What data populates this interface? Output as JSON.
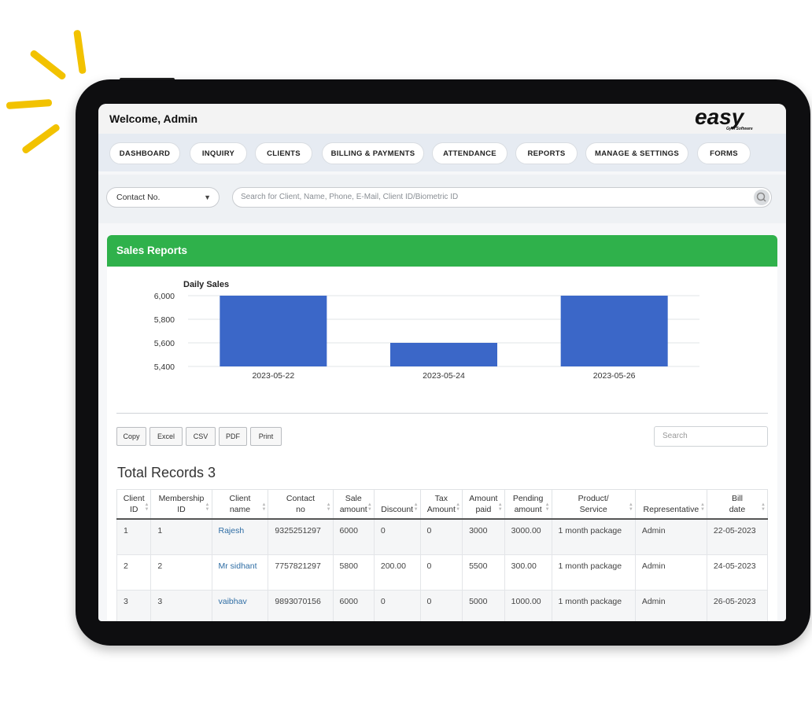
{
  "header": {
    "welcome": "Welcome, Admin",
    "logo_text": "easy",
    "logo_sub": "Gym Software"
  },
  "nav": [
    "DASHBOARD",
    "INQUIRY",
    "CLIENTS",
    "BILLING & PAYMENTS",
    "ATTENDANCE",
    "REPORTS",
    "MANAGE & SETTINGS",
    "FORMS"
  ],
  "search": {
    "select_value": "Contact No.",
    "placeholder": "Search for Client, Name, Phone, E-Mail, Client ID/Biometric ID"
  },
  "panel": {
    "title": "Sales Reports"
  },
  "chart_data": {
    "type": "bar",
    "title": "Daily Sales",
    "categories": [
      "2023-05-22",
      "2023-05-24",
      "2023-05-26"
    ],
    "values": [
      6000,
      5600,
      6000
    ],
    "ylim": [
      5400,
      6000
    ],
    "yticks": [
      "6,000",
      "5,800",
      "5,600",
      "5,400"
    ],
    "color": "#3b67c8",
    "grid": true
  },
  "export_buttons": [
    "Copy",
    "Excel",
    "CSV",
    "PDF",
    "Print"
  ],
  "table_search_placeholder": "Search",
  "total_records": "Total Records 3",
  "table": {
    "headers": [
      [
        "Client",
        "ID"
      ],
      [
        "Membership",
        "ID"
      ],
      [
        "Client",
        "name"
      ],
      [
        "Contact",
        "no"
      ],
      [
        "Sale",
        "amount"
      ],
      [
        "Discount"
      ],
      [
        "Tax",
        "Amount"
      ],
      [
        "Amount",
        "paid"
      ],
      [
        "Pending",
        "amount"
      ],
      [
        "Product/",
        "Service"
      ],
      [
        "Representative"
      ],
      [
        "Bill",
        "date"
      ]
    ],
    "rows": [
      [
        "1",
        "1",
        "Rajesh",
        "9325251297",
        "6000",
        "0",
        "0",
        "3000",
        "3000.00",
        "1 month package",
        "Admin",
        "22-05-2023"
      ],
      [
        "2",
        "2",
        "Mr sidhant",
        "7757821297",
        "5800",
        "200.00",
        "0",
        "5500",
        "300.00",
        "1 month package",
        "Admin",
        "24-05-2023"
      ],
      [
        "3",
        "3",
        "vaibhav",
        "9893070156",
        "6000",
        "0",
        "0",
        "5000",
        "1000.00",
        "1 month package",
        "Admin",
        "26-05-2023"
      ]
    ]
  }
}
